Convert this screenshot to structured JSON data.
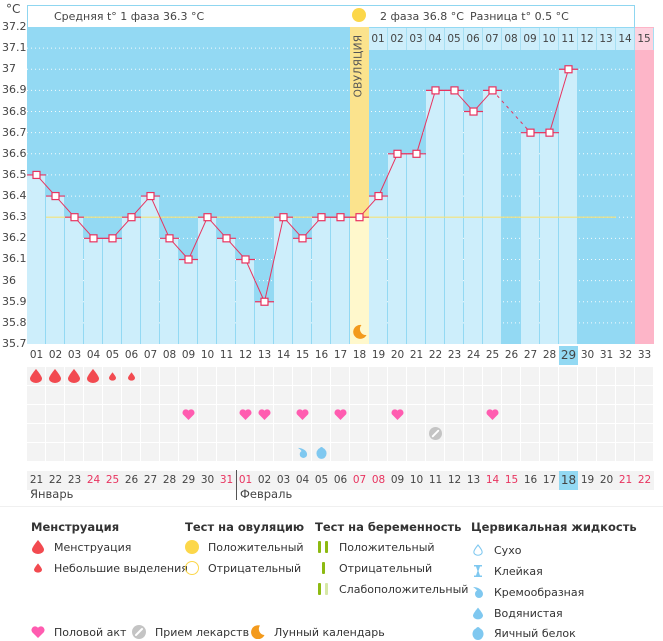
{
  "header": {
    "unit": "°C",
    "phase1_label": "Средняя t° 1 фаза 36.3 °C",
    "phase2_label": "2 фаза 36.8 °C",
    "difference_label": "Разница t° 0.5 °C",
    "ovulation_label": "ОВУЛЯЦИЯ"
  },
  "pregnancy_days": [
    "01",
    "02",
    "03",
    "04",
    "05",
    "06",
    "07",
    "08",
    "09",
    "10",
    "11",
    "12",
    "13",
    "14",
    "15"
  ],
  "cycle_days": [
    "01",
    "02",
    "03",
    "04",
    "05",
    "06",
    "07",
    "08",
    "09",
    "10",
    "11",
    "12",
    "13",
    "14",
    "15",
    "16",
    "17",
    "18",
    "19",
    "20",
    "21",
    "22",
    "23",
    "24",
    "25",
    "26",
    "27",
    "28",
    "29",
    "30",
    "31",
    "32",
    "33"
  ],
  "current_cycle_day": "29",
  "dates": [
    {
      "d": "21",
      "red": false
    },
    {
      "d": "22",
      "red": false
    },
    {
      "d": "23",
      "red": false
    },
    {
      "d": "24",
      "red": true
    },
    {
      "d": "25",
      "red": true
    },
    {
      "d": "26",
      "red": false
    },
    {
      "d": "27",
      "red": false
    },
    {
      "d": "28",
      "red": false
    },
    {
      "d": "29",
      "red": false
    },
    {
      "d": "30",
      "red": false
    },
    {
      "d": "31",
      "red": true
    },
    {
      "d": "01",
      "red": true
    },
    {
      "d": "02",
      "red": false
    },
    {
      "d": "03",
      "red": false
    },
    {
      "d": "04",
      "red": false
    },
    {
      "d": "05",
      "red": false
    },
    {
      "d": "06",
      "red": false
    },
    {
      "d": "07",
      "red": true
    },
    {
      "d": "08",
      "red": true
    },
    {
      "d": "09",
      "red": false
    },
    {
      "d": "10",
      "red": false
    },
    {
      "d": "11",
      "red": false
    },
    {
      "d": "12",
      "red": false
    },
    {
      "d": "13",
      "red": false
    },
    {
      "d": "14",
      "red": true
    },
    {
      "d": "15",
      "red": true
    },
    {
      "d": "16",
      "red": false
    },
    {
      "d": "17",
      "red": false
    },
    {
      "d": "18",
      "red": false
    },
    {
      "d": "19",
      "red": false
    },
    {
      "d": "20",
      "red": false
    },
    {
      "d": "21",
      "red": true
    },
    {
      "d": "22",
      "red": true
    }
  ],
  "today_date": "18",
  "months": [
    "Январь",
    "Февраль"
  ],
  "chart_data": {
    "type": "line",
    "title": "",
    "xlabel": "",
    "ylabel": "°C",
    "ylim": [
      35.7,
      37.2
    ],
    "yticks": [
      "37.2",
      "37.1",
      "37",
      "36.9",
      "36.8",
      "36.7",
      "36.6",
      "36.5",
      "36.4",
      "36.3",
      "36.2",
      "36.1",
      "36",
      "35.9",
      "35.8",
      "35.7"
    ],
    "x": [
      1,
      2,
      3,
      4,
      5,
      6,
      7,
      8,
      9,
      10,
      11,
      12,
      13,
      14,
      15,
      16,
      17,
      18,
      19,
      20,
      21,
      22,
      23,
      24,
      25,
      26,
      27,
      28,
      29,
      30,
      31,
      32,
      33
    ],
    "series": [
      {
        "name": "Базальная температура",
        "values": [
          36.5,
          36.4,
          36.3,
          36.2,
          36.2,
          36.3,
          36.4,
          36.2,
          36.1,
          36.3,
          36.2,
          36.1,
          35.9,
          36.3,
          36.2,
          36.3,
          36.3,
          36.3,
          36.4,
          36.6,
          36.6,
          36.9,
          36.9,
          36.8,
          36.9,
          null,
          36.7,
          36.7,
          37.0,
          null,
          null,
          null,
          null
        ]
      }
    ],
    "coverline": 36.3,
    "ovulation_day": 18,
    "expected_period_day": 33,
    "grid": true
  },
  "events": {
    "menstruation": {
      "1": "heavy",
      "2": "heavy",
      "3": "heavy",
      "4": "heavy",
      "5": "light",
      "6": "light"
    },
    "intercourse": [
      9,
      12,
      13,
      15,
      17,
      20,
      25
    ],
    "medication": [
      22
    ],
    "cervical_fluid": {
      "15": "creamy",
      "16": "egg_white"
    },
    "moon_day": 18
  },
  "legend": {
    "menstruation": {
      "title": "Менструация",
      "items": [
        "Менструация",
        "Небольшие выделения"
      ]
    },
    "ovulation_test": {
      "title": "Тест на овуляцию",
      "items": [
        "Положительный",
        "Отрицательный"
      ]
    },
    "pregnancy_test": {
      "title": "Тест на беременность",
      "items": [
        "Положительный",
        "Отрицательный",
        "Слабоположительный"
      ]
    },
    "cervical_fluid": {
      "title": "Цервикальная жидкость",
      "items": [
        "Сухо",
        "Клейкая",
        "Кремообразная",
        "Водянистая",
        "Яичный белок"
      ]
    },
    "other": [
      "Половой акт",
      "Прием лекарств",
      "Лунный календарь"
    ]
  },
  "colors": {
    "sky": "#93d9f3",
    "bar": "#cdeefb",
    "line": "#e8335f",
    "ovulation": "#fbe38d",
    "expected": "#fdb5c8",
    "coverline": "#f5e27a",
    "blood": "#f24a50",
    "heart": "#ff5cb0",
    "fluid": "#7fc8f0",
    "pill": "#c4c4c4",
    "moon": "#f39a1c",
    "red_date": "#e8335f",
    "test_green": "#8dba12"
  }
}
